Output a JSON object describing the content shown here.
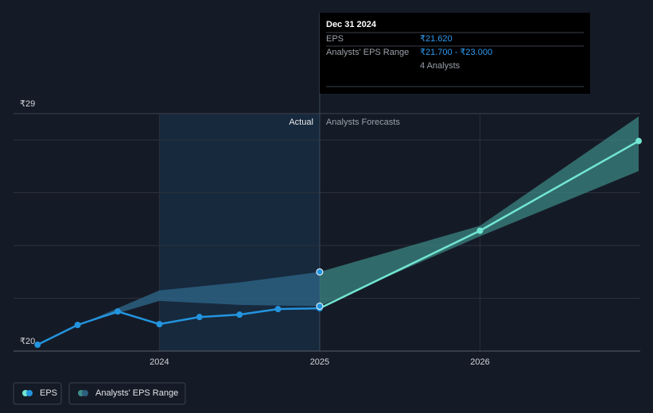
{
  "chart_data": {
    "type": "line",
    "x_axis": {
      "xlim": [
        2023.09,
        2027.0
      ],
      "xticks": [
        2024,
        2025,
        2026
      ]
    },
    "ylim": [
      20,
      29
    ],
    "yticks": [
      {
        "value": 20,
        "label": "₹20"
      },
      {
        "value": 29,
        "label": "₹29"
      }
    ],
    "grid_values": [
      22,
      24,
      26,
      28
    ],
    "labels": {
      "actual": "Actual",
      "forecast": "Analysts Forecasts"
    },
    "series": [
      {
        "name": "EPS",
        "color": "#2394df",
        "x": [
          2023.24,
          2023.49,
          2023.74,
          2024.0,
          2024.25,
          2024.5,
          2024.74,
          2025.0
        ],
        "values": [
          20.24,
          20.99,
          21.5,
          21.02,
          21.29,
          21.38,
          21.59,
          21.62
        ]
      },
      {
        "name": "Analysts' EPS Range",
        "color": "#2b5f80",
        "x": [
          2023.5,
          2024.0,
          2024.5,
          2025.0
        ],
        "low": [
          21.0,
          21.9,
          21.75,
          21.7
        ],
        "high": [
          21.0,
          22.3,
          22.6,
          23.0
        ]
      }
    ],
    "forecast": {
      "color": "#72e6d2",
      "band_color": "#3d8c89",
      "x": [
        2025.0,
        2026.0,
        2026.99
      ],
      "values": [
        21.62,
        24.56,
        27.96
      ],
      "low": [
        21.7,
        24.35,
        26.82
      ],
      "high": [
        23.0,
        24.75,
        28.89
      ]
    },
    "tooltip": {
      "date": "Dec 31 2024",
      "eps_label": "EPS",
      "eps_value": "₹21.620",
      "range_label": "Analysts' EPS Range",
      "range_value": "₹21.700 - ₹23.000",
      "analysts": "4 Analysts"
    }
  }
}
